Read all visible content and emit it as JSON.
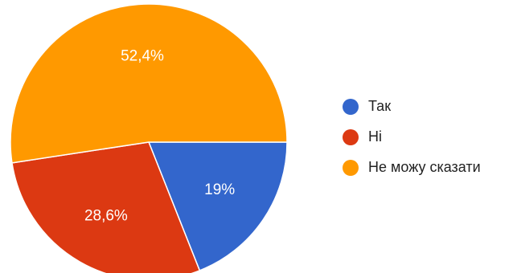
{
  "chart_data": {
    "type": "pie",
    "legend_position": "right",
    "slices": [
      {
        "label": "Так",
        "value": 19.0,
        "display": "19%",
        "color": "#3366cc"
      },
      {
        "label": "Ні",
        "value": 28.6,
        "display": "28,6%",
        "color": "#dc3912"
      },
      {
        "label": "Не можу сказати",
        "value": 52.4,
        "display": "52,4%",
        "color": "#ff9900"
      }
    ]
  }
}
